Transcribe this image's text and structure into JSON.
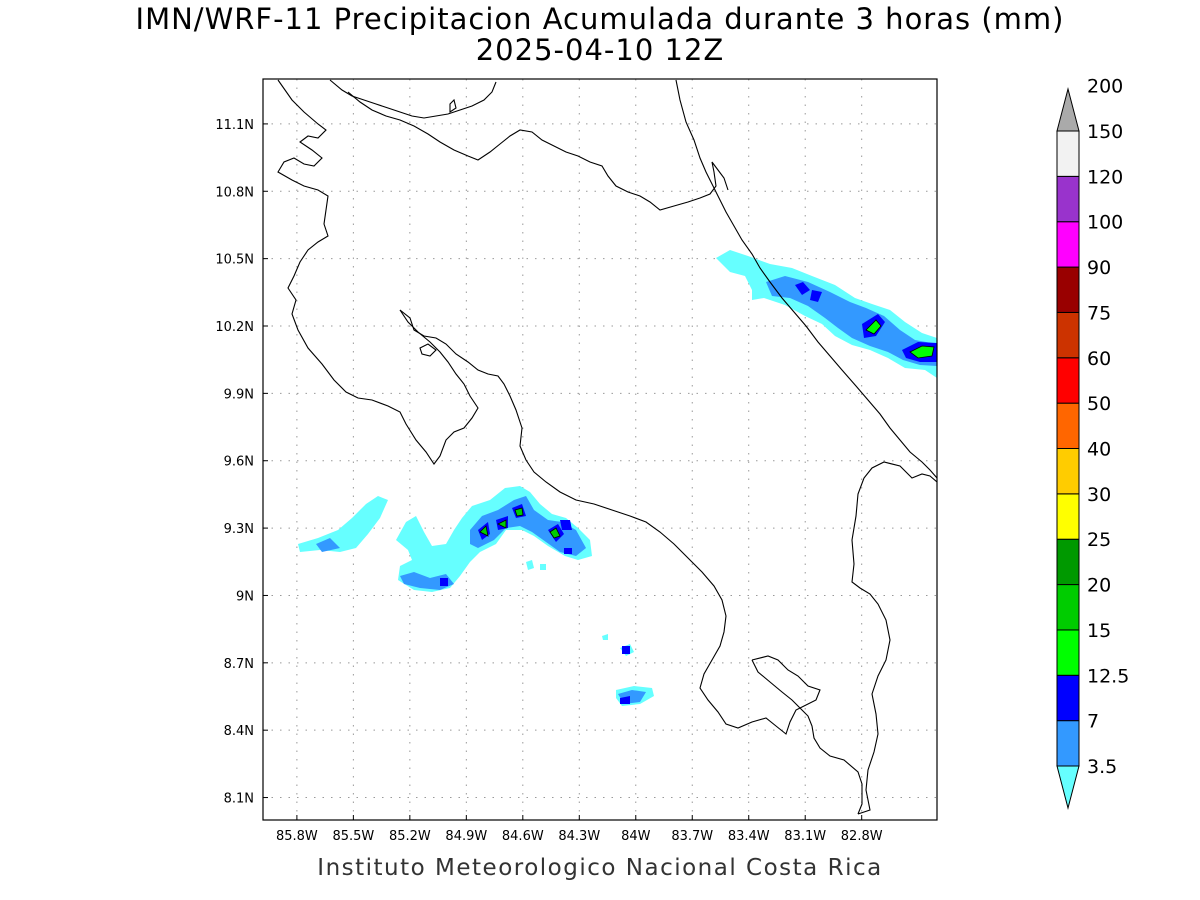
{
  "title": {
    "line1": "IMN/WRF-11 Precipitacion Acumulada durante 3 horas (mm)",
    "line2": "2025-04-10 12Z"
  },
  "footer": "Instituto Meteorologico Nacional Costa Rica",
  "map": {
    "lon_range": [
      -85.98,
      -82.4
    ],
    "lat_range": [
      8.0,
      11.3
    ],
    "lon_ticks": [
      {
        "value": -85.8,
        "label": "85.8W"
      },
      {
        "value": -85.5,
        "label": "85.5W"
      },
      {
        "value": -85.2,
        "label": "85.2W"
      },
      {
        "value": -84.9,
        "label": "84.9W"
      },
      {
        "value": -84.6,
        "label": "84.6W"
      },
      {
        "value": -84.3,
        "label": "84.3W"
      },
      {
        "value": -84.0,
        "label": "84W"
      },
      {
        "value": -83.7,
        "label": "83.7W"
      },
      {
        "value": -83.4,
        "label": "83.4W"
      },
      {
        "value": -83.1,
        "label": "83.1W"
      },
      {
        "value": -82.8,
        "label": "82.8W"
      }
    ],
    "lat_ticks": [
      {
        "value": 11.1,
        "label": "11.1N"
      },
      {
        "value": 10.8,
        "label": "10.8N"
      },
      {
        "value": 10.5,
        "label": "10.5N"
      },
      {
        "value": 10.2,
        "label": "10.2N"
      },
      {
        "value": 9.9,
        "label": "9.9N"
      },
      {
        "value": 9.6,
        "label": "9.6N"
      },
      {
        "value": 9.3,
        "label": "9.3N"
      },
      {
        "value": 9.0,
        "label": "9N"
      },
      {
        "value": 8.7,
        "label": "8.7N"
      },
      {
        "value": 8.4,
        "label": "8.4N"
      },
      {
        "value": 8.1,
        "label": "8.1N"
      }
    ],
    "grid": true
  },
  "colorbar": {
    "levels": [
      {
        "label": "3.5",
        "color": "#66ffff"
      },
      {
        "label": "7",
        "color": "#3399ff"
      },
      {
        "label": "12.5",
        "color": "#0000ff"
      },
      {
        "label": "15",
        "color": "#00ff00"
      },
      {
        "label": "20",
        "color": "#00cc00"
      },
      {
        "label": "25",
        "color": "#009900"
      },
      {
        "label": "30",
        "color": "#ffff00"
      },
      {
        "label": "40",
        "color": "#ffcc00"
      },
      {
        "label": "50",
        "color": "#ff6600"
      },
      {
        "label": "60",
        "color": "#ff0000"
      },
      {
        "label": "75",
        "color": "#cc3300"
      },
      {
        "label": "90",
        "color": "#990000"
      },
      {
        "label": "100",
        "color": "#ff00ff"
      },
      {
        "label": "120",
        "color": "#9933cc"
      },
      {
        "label": "150",
        "color": "#f2f2f2"
      },
      {
        "label": "200",
        "color": "#aaaaaa"
      }
    ]
  }
}
